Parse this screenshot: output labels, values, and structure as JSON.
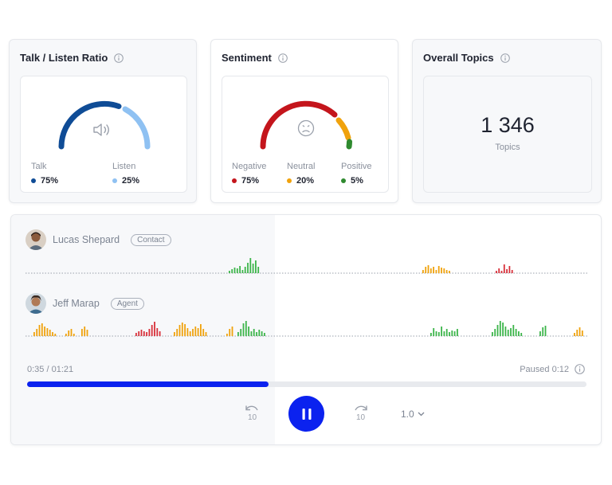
{
  "cards": {
    "talk_listen": {
      "title": "Talk / Listen Ratio",
      "talk": {
        "label": "Talk",
        "value": "75%",
        "color": "#0f4c96",
        "fraction": 0.75
      },
      "listen": {
        "label": "Listen",
        "value": "25%",
        "color": "#8fc1f2",
        "fraction": 0.25
      }
    },
    "sentiment": {
      "title": "Sentiment",
      "negative": {
        "label": "Negative",
        "value": "75%",
        "color": "#c4151c",
        "fraction": 0.75
      },
      "neutral": {
        "label": "Neutral",
        "value": "20%",
        "color": "#f0a20c",
        "fraction": 0.2
      },
      "positive": {
        "label": "Positive",
        "value": "5%",
        "color": "#2f8a2f",
        "fraction": 0.05
      }
    },
    "topics": {
      "title": "Overall Topics",
      "value": "1 346",
      "label": "Topics"
    }
  },
  "player": {
    "speakers": [
      {
        "name": "Lucas Shepard",
        "tag": "Contact"
      },
      {
        "name": "Jeff Marap",
        "tag": "Agent"
      }
    ],
    "elapsed": "0:35 / 01:21",
    "paused": "Paused 0:12",
    "progress": 0.432,
    "speed": "1.0",
    "skip_back_label": "10",
    "skip_forward_label": "10"
  },
  "colors": {
    "accent": "#0b22ef",
    "positive": "#3cb54a",
    "neutral": "#f0a20c",
    "negative": "#d8303a"
  }
}
